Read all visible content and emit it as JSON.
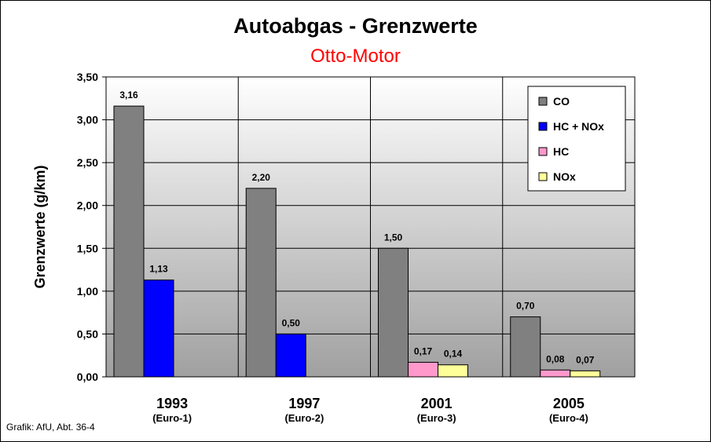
{
  "chart_data": {
    "type": "bar",
    "title": "Autoabgas - Grenzwerte",
    "subtitle": "Otto-Motor",
    "ylabel": "Grenzwerte (g/km)",
    "xlabel": "",
    "ylim": [
      0,
      3.5
    ],
    "yticks": [
      "0,00",
      "0,50",
      "1,00",
      "1,50",
      "2,00",
      "2,50",
      "3,00",
      "3,50"
    ],
    "grid": true,
    "legend_position": "top-right",
    "categories": [
      "1993",
      "1997",
      "2001",
      "2005"
    ],
    "category_sublabels": [
      "(Euro-1)",
      "(Euro-2)",
      "(Euro-3)",
      "(Euro-4)"
    ],
    "series": [
      {
        "name": "CO",
        "color": "#808080",
        "values": [
          3.16,
          2.2,
          1.5,
          0.7
        ],
        "labels": [
          "3,16",
          "2,20",
          "1,50",
          "0,70"
        ]
      },
      {
        "name": "HC + NOx",
        "color": "#0000ff",
        "values": [
          1.13,
          0.5,
          null,
          null
        ],
        "labels": [
          "1,13",
          "0,50",
          null,
          null
        ]
      },
      {
        "name": "HC",
        "color": "#ff99cc",
        "values": [
          null,
          null,
          0.17,
          0.08
        ],
        "labels": [
          null,
          null,
          "0,17",
          "0,08"
        ]
      },
      {
        "name": "NOx",
        "color": "#ffff99",
        "values": [
          null,
          null,
          0.14,
          0.07
        ],
        "labels": [
          null,
          null,
          "0,14",
          "0,07"
        ]
      }
    ]
  },
  "credit": "Grafik: AfU, Abt. 36-4"
}
